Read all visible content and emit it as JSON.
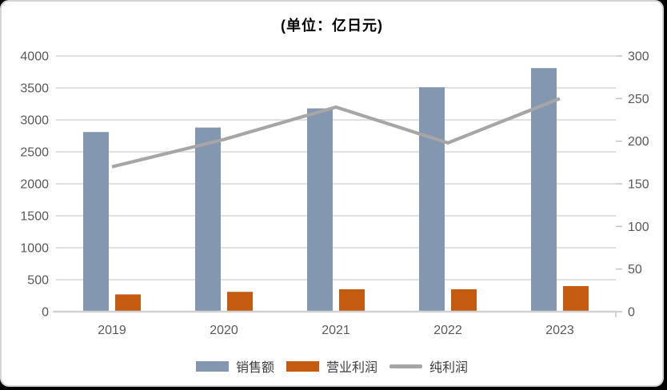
{
  "panel": {
    "background": "#ffffff",
    "border_color": "#d4d4d4",
    "outside_color": "#000000"
  },
  "chart_data": {
    "type": "bar+line combo",
    "title": "(单位：亿日元)",
    "categories": [
      "2019",
      "2020",
      "2021",
      "2022",
      "2023"
    ],
    "series": [
      {
        "id": "sales",
        "name": "销售额",
        "type": "bar",
        "axis": "left",
        "color": "#8497B0",
        "values": [
          2810,
          2880,
          3180,
          3510,
          3810
        ]
      },
      {
        "id": "operating-profit",
        "name": "营业利润",
        "type": "bar",
        "axis": "left",
        "color": "#C55A11",
        "values": [
          270,
          310,
          350,
          350,
          400
        ]
      },
      {
        "id": "net-profit",
        "name": "纯利润",
        "type": "line",
        "axis": "right",
        "color": "#A6A6A6",
        "values": [
          170,
          202,
          240,
          198,
          250
        ]
      }
    ],
    "left_axis": {
      "min": 0,
      "max": 4000,
      "step": 500,
      "ticks": [
        "0",
        "500",
        "1000",
        "1500",
        "2000",
        "2500",
        "3000",
        "3500",
        "4000"
      ]
    },
    "right_axis": {
      "min": 0,
      "max": 300,
      "step": 50,
      "ticks": [
        "0",
        "50",
        "100",
        "150",
        "200",
        "250",
        "300"
      ]
    },
    "grid": true,
    "legend_position": "bottom"
  },
  "styles": {
    "grid_color": "#dbdbdb",
    "axis_line_color": "#d2d2d2",
    "tick_color": "#c4c4c4",
    "axis_label_color": "#595959",
    "title_color": "#000000",
    "legend_text_color": "#3d3d3d"
  }
}
